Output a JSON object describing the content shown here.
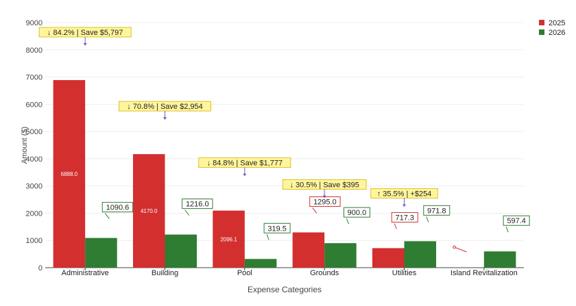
{
  "chart_data": {
    "type": "bar",
    "title": "",
    "xlabel": "Expense Categories",
    "ylabel": "Amount ($)",
    "ylim": [
      0,
      9000
    ],
    "yticks": [
      0,
      1000,
      2000,
      3000,
      4000,
      5000,
      6000,
      7000,
      8000,
      9000
    ],
    "grid": true,
    "legend_position": "top-right",
    "categories": [
      "Administrative",
      "Building",
      "Pool",
      "Grounds",
      "Utilities",
      "Island Revitalization"
    ],
    "series": [
      {
        "name": "2025",
        "color": "#d32f2f",
        "values": [
          6888.0,
          4170.0,
          2096.1,
          1295.0,
          717.3,
          0
        ]
      },
      {
        "name": "2026",
        "color": "#2e7d32",
        "values": [
          1090.6,
          1216.0,
          319.5,
          900.0,
          971.8,
          597.4
        ]
      }
    ],
    "bar_labels": {
      "2025": [
        "6888.0",
        "4170.0",
        "2096.1",
        "1295.0",
        "717.3",
        ""
      ],
      "2026": [
        "1090.6",
        "1216.0",
        "319.5",
        "900.0",
        "971.8",
        "597.4"
      ]
    },
    "change_annotations": [
      "↓ 84.2% | Save $5,797",
      "↓ 70.8% | Save $2,954",
      "↓ 84.8% | Save $1,777",
      "↓ 30.5% | Save $395",
      "↑ 35.5% | +$254",
      ""
    ],
    "annotation_color": "#fff59d",
    "arrow_color": "#7e57c2"
  }
}
